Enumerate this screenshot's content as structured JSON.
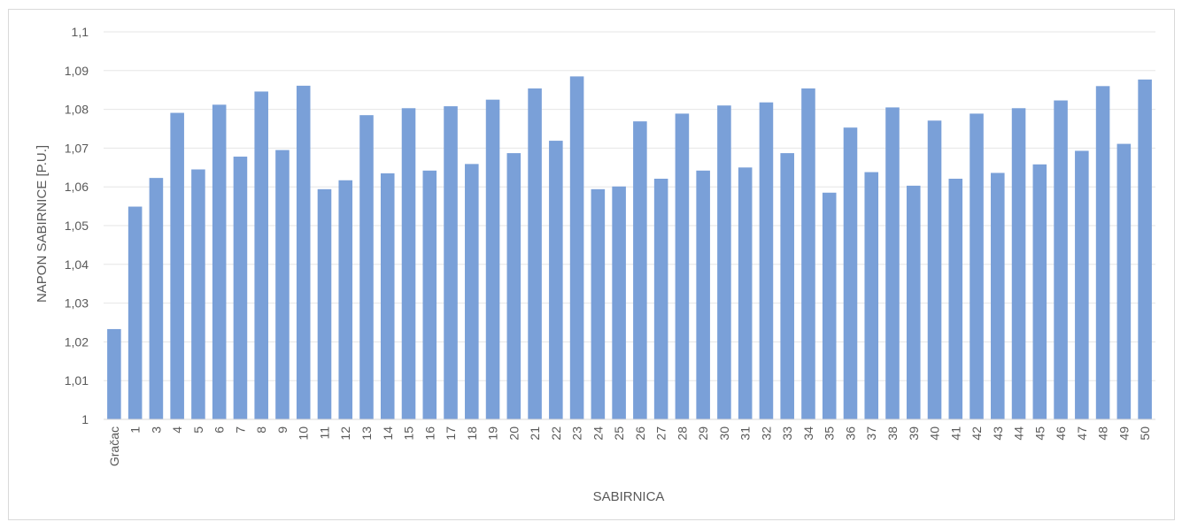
{
  "chart_data": {
    "type": "bar",
    "xlabel": "SABIRNICA",
    "ylabel": "NAPON SABIRNICE [P.U.]",
    "ylim": [
      1,
      1.1
    ],
    "ytick_values": [
      1,
      1.01,
      1.02,
      1.03,
      1.04,
      1.05,
      1.06,
      1.07,
      1.08,
      1.09,
      1.1
    ],
    "ytick_labels": [
      "1",
      "1,01",
      "1,02",
      "1,03",
      "1,04",
      "1,05",
      "1,06",
      "1,07",
      "1,08",
      "1,09",
      "1,1"
    ],
    "grid": "horizontal",
    "bar_color": "#7aa0d8",
    "categories": [
      "Gračac",
      "1",
      "3",
      "4",
      "5",
      "6",
      "7",
      "8",
      "9",
      "10",
      "11",
      "12",
      "13",
      "14",
      "15",
      "16",
      "17",
      "18",
      "19",
      "20",
      "21",
      "22",
      "23",
      "24",
      "25",
      "26",
      "27",
      "28",
      "29",
      "30",
      "31",
      "32",
      "33",
      "34",
      "35",
      "36",
      "37",
      "38",
      "39",
      "40",
      "41",
      "42",
      "43",
      "44",
      "45",
      "46",
      "47",
      "48",
      "49",
      "50"
    ],
    "values": [
      1.0233,
      1.0549,
      1.0623,
      1.0791,
      1.0645,
      1.0812,
      1.0678,
      1.0846,
      1.0695,
      1.0861,
      1.0594,
      1.0617,
      1.0785,
      1.0635,
      1.0803,
      1.0642,
      1.0808,
      1.0659,
      1.0825,
      1.0687,
      1.0854,
      1.0719,
      1.0885,
      1.0594,
      1.0601,
      1.0769,
      1.0621,
      1.0789,
      1.0642,
      1.081,
      1.065,
      1.0818,
      1.0687,
      1.0854,
      1.0585,
      1.0753,
      1.0638,
      1.0805,
      1.0603,
      1.0771,
      1.0621,
      1.0789,
      1.0636,
      1.0803,
      1.0658,
      1.0823,
      1.0693,
      1.086,
      1.0711,
      1.0877
    ]
  }
}
